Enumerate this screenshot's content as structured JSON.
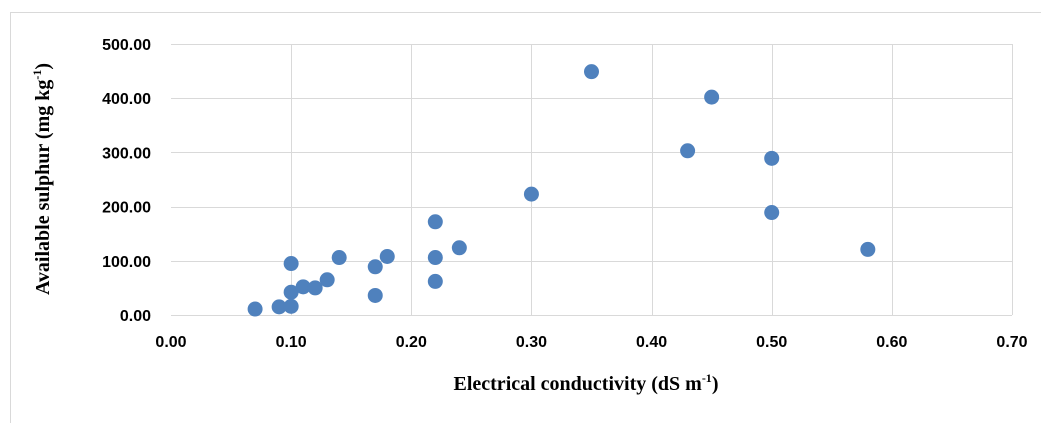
{
  "chart_data": {
    "type": "scatter",
    "title": "",
    "xlabel": {
      "text": "Electrical conductivity (dS m",
      "superscript": "-1",
      "suffix": ")"
    },
    "ylabel": {
      "text": "Available sulphur (mg kg",
      "superscript": "-1",
      "suffix": ")"
    },
    "xlim": [
      0,
      0.7
    ],
    "ylim": [
      0,
      500
    ],
    "x_ticks": [
      0,
      0.1,
      0.2,
      0.3,
      0.4,
      0.5,
      0.6,
      0.7
    ],
    "x_tick_labels": [
      "0.00",
      "0.10",
      "0.20",
      "0.30",
      "0.40",
      "0.50",
      "0.60",
      "0.70"
    ],
    "y_ticks": [
      0,
      100,
      200,
      300,
      400,
      500
    ],
    "y_tick_labels": [
      "0.00",
      "100.00",
      "200.00",
      "300.00",
      "400.00",
      "500.00"
    ],
    "grid": true,
    "legend": "none",
    "marker_color": "#4f81bd",
    "gridline_color": "#d9d9d9",
    "series": [
      {
        "points": [
          {
            "x": 0.07,
            "y": 11
          },
          {
            "x": 0.09,
            "y": 15
          },
          {
            "x": 0.1,
            "y": 16
          },
          {
            "x": 0.1,
            "y": 42
          },
          {
            "x": 0.1,
            "y": 95
          },
          {
            "x": 0.11,
            "y": 52
          },
          {
            "x": 0.12,
            "y": 50
          },
          {
            "x": 0.13,
            "y": 65
          },
          {
            "x": 0.14,
            "y": 106
          },
          {
            "x": 0.17,
            "y": 36
          },
          {
            "x": 0.17,
            "y": 89
          },
          {
            "x": 0.18,
            "y": 108
          },
          {
            "x": 0.22,
            "y": 62
          },
          {
            "x": 0.22,
            "y": 106
          },
          {
            "x": 0.22,
            "y": 172
          },
          {
            "x": 0.24,
            "y": 124
          },
          {
            "x": 0.3,
            "y": 223
          },
          {
            "x": 0.35,
            "y": 449
          },
          {
            "x": 0.43,
            "y": 303
          },
          {
            "x": 0.45,
            "y": 402
          },
          {
            "x": 0.5,
            "y": 289
          },
          {
            "x": 0.5,
            "y": 189
          },
          {
            "x": 0.58,
            "y": 121
          }
        ]
      }
    ]
  }
}
